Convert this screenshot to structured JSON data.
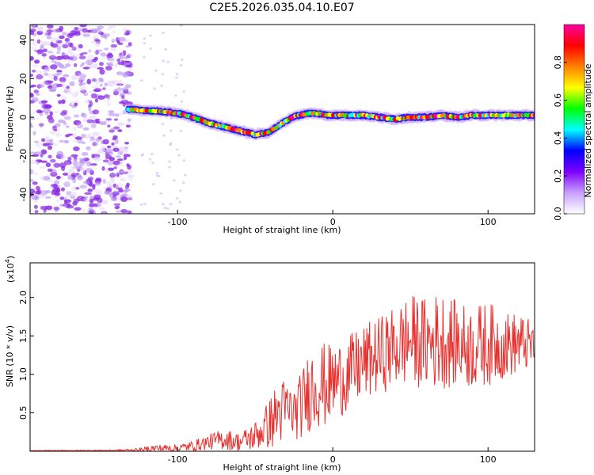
{
  "title": "C2E5.2026.035.04.10.E07",
  "chart_data": [
    {
      "type": "heatmap",
      "name": "spectrogram",
      "xlabel": "Height of straight line (km)",
      "ylabel": "Frequency (Hz)",
      "xlim": [
        -195,
        130
      ],
      "ylim": [
        -50,
        48
      ],
      "xticks": [
        -100,
        0,
        100
      ],
      "xtick_labels": [
        "-100",
        "0",
        "100"
      ],
      "yticks": [
        -40,
        -20,
        0,
        20,
        40
      ],
      "ytick_labels": [
        "-40",
        "-20",
        "0",
        "20",
        "40"
      ],
      "noise_region_x": [
        -195,
        -130
      ],
      "ridge": {
        "x": [
          -132,
          -120,
          -110,
          -100,
          -90,
          -80,
          -70,
          -60,
          -50,
          -42,
          -36,
          -30,
          -26,
          -22,
          -15,
          -10,
          -5,
          0,
          10,
          20,
          30,
          40,
          50,
          60,
          70,
          80,
          90,
          100,
          110,
          120,
          130
        ],
        "y": [
          4,
          3.5,
          3,
          2,
          0,
          -3,
          -5,
          -7,
          -9,
          -8,
          -5,
          -2,
          0,
          1,
          2,
          2,
          1,
          1,
          1,
          1,
          0,
          -1,
          0,
          0,
          1,
          0,
          1,
          1,
          1,
          1,
          1
        ]
      },
      "colorbar": {
        "label": "Normalized spectral amplitude",
        "range": [
          0,
          1
        ],
        "ticks": [
          0.0,
          0.2,
          0.4,
          0.6,
          0.8
        ],
        "tick_labels": [
          "0.0",
          "0.2",
          "0.4",
          "0.6",
          "0.8"
        ],
        "colors": [
          "#ffffff",
          "#c8a0ff",
          "#8000ff",
          "#0000ff",
          "#00ffff",
          "#00ff00",
          "#ffff00",
          "#ff8000",
          "#ff0000",
          "#ff00a0"
        ]
      }
    },
    {
      "type": "line",
      "name": "snr",
      "xlabel": "Height of straight line (km)",
      "ylabel": "SNR (10 * v/v)",
      "multiplier_label": "(x10",
      "multiplier_exp": "4",
      "multiplier_close": ")",
      "xlim": [
        -195,
        130
      ],
      "ylim": [
        0,
        2.45
      ],
      "xticks": [
        -100,
        0,
        100
      ],
      "xtick_labels": [
        "-100",
        "0",
        "100"
      ],
      "yticks": [
        0.5,
        1.0,
        1.5,
        2.0
      ],
      "ytick_labels": [
        "0.5",
        "1.0",
        "1.5",
        "2.0"
      ],
      "line_color": "#e8302e",
      "envelope": {
        "x": [
          -195,
          -140,
          -125,
          -115,
          -100,
          -90,
          -80,
          -70,
          -60,
          -50,
          -45,
          -40,
          -35,
          -30,
          -25,
          -20,
          -15,
          -10,
          -5,
          0,
          10,
          20,
          30,
          40,
          50,
          60,
          70,
          80,
          90,
          100,
          110,
          120,
          130
        ],
        "mean": [
          0.005,
          0.01,
          0.02,
          0.04,
          0.04,
          0.07,
          0.12,
          0.16,
          0.12,
          0.2,
          0.28,
          0.38,
          0.5,
          0.55,
          0.5,
          0.6,
          0.8,
          0.9,
          0.85,
          0.9,
          1.0,
          1.15,
          1.25,
          1.35,
          1.45,
          1.4,
          1.45,
          1.4,
          1.35,
          1.4,
          1.38,
          1.4,
          1.38
        ],
        "spread": [
          0.005,
          0.01,
          0.02,
          0.05,
          0.05,
          0.07,
          0.1,
          0.14,
          0.12,
          0.2,
          0.25,
          0.35,
          0.45,
          0.4,
          0.35,
          0.45,
          0.55,
          0.6,
          0.55,
          0.5,
          0.5,
          0.5,
          0.5,
          0.55,
          0.6,
          0.6,
          0.65,
          0.55,
          0.55,
          0.55,
          0.45,
          0.4,
          0.3
        ]
      }
    }
  ]
}
